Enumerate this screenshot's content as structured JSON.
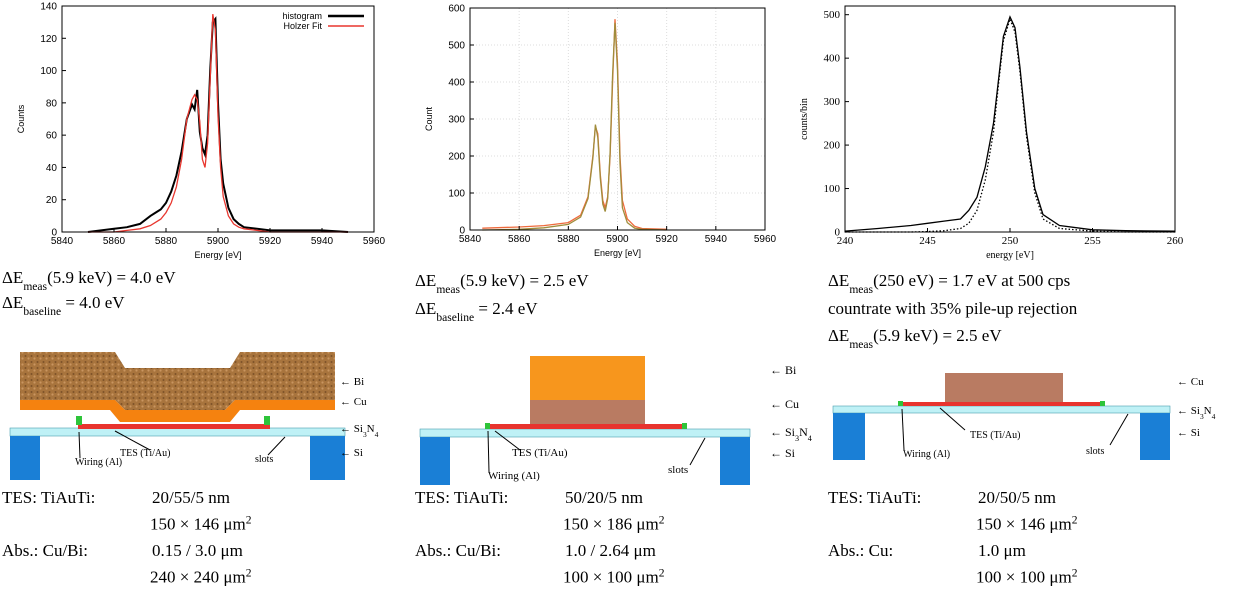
{
  "chart_data": [
    {
      "type": "line",
      "x_label": "Energy [eV]",
      "y_label": "Counts",
      "xlim": [
        5840,
        5960
      ],
      "xticks": [
        5840,
        5860,
        5880,
        5900,
        5920,
        5940,
        5960
      ],
      "ylim": [
        0,
        140
      ],
      "yticks": [
        0,
        20,
        40,
        60,
        80,
        100,
        120,
        140
      ],
      "grid": false,
      "legend": "upper right",
      "x": [
        5850,
        5855,
        5860,
        5865,
        5870,
        5874,
        5876,
        5878,
        5880,
        5882,
        5884,
        5886,
        5888,
        5890,
        5891,
        5892,
        5893,
        5894,
        5895,
        5896,
        5897,
        5898,
        5899,
        5900,
        5901,
        5902,
        5904,
        5906,
        5908,
        5910,
        5915,
        5920,
        5930,
        5940,
        5950
      ],
      "series": [
        {
          "name": "histogram",
          "color": "#000000",
          "values": [
            0,
            1,
            2,
            3,
            5,
            10,
            12,
            14,
            18,
            25,
            35,
            50,
            70,
            79,
            76,
            88,
            62,
            52,
            48,
            60,
            100,
            130,
            132,
            80,
            45,
            30,
            15,
            8,
            5,
            3,
            2,
            1,
            1,
            1,
            0
          ]
        },
        {
          "name": "Holzer Fit",
          "color": "#e8372f",
          "values": [
            0,
            0,
            0,
            1,
            2,
            4,
            6,
            8,
            12,
            18,
            28,
            45,
            70,
            82,
            85,
            82,
            68,
            45,
            40,
            55,
            95,
            135,
            125,
            72,
            40,
            22,
            10,
            5,
            3,
            2,
            1,
            0,
            0,
            0,
            0
          ]
        }
      ]
    },
    {
      "type": "line",
      "x_label": "Energy [eV]",
      "y_label": "Count",
      "xlim": [
        5840,
        5960
      ],
      "xticks": [
        5840,
        5860,
        5880,
        5900,
        5920,
        5940,
        5960
      ],
      "ylim": [
        0,
        600
      ],
      "yticks": [
        0,
        100,
        200,
        300,
        400,
        500,
        600
      ],
      "grid": true,
      "x": [
        5845,
        5860,
        5870,
        5880,
        5885,
        5888,
        5890,
        5891,
        5892,
        5893,
        5894,
        5895,
        5896,
        5897,
        5898,
        5899,
        5900,
        5901,
        5902,
        5904,
        5907,
        5910,
        5920
      ],
      "series": [
        {
          "color": "#ee6a3c",
          "values": [
            5,
            8,
            12,
            20,
            40,
            90,
            200,
            280,
            260,
            150,
            80,
            60,
            90,
            200,
            400,
            570,
            450,
            200,
            80,
            30,
            10,
            4,
            2
          ]
        },
        {
          "color": "#a08d3c",
          "values": [
            0,
            2,
            6,
            15,
            35,
            85,
            195,
            285,
            250,
            140,
            70,
            50,
            85,
            210,
            420,
            560,
            430,
            180,
            60,
            20,
            5,
            2,
            0
          ]
        }
      ]
    },
    {
      "type": "line",
      "x_label": "energy [eV]",
      "y_label": "counts/bin",
      "xlim": [
        240,
        260
      ],
      "xticks": [
        240,
        245,
        250,
        255,
        260
      ],
      "ylim": [
        0,
        520
      ],
      "yticks": [
        0,
        100,
        200,
        300,
        400,
        500
      ],
      "grid": false,
      "x": [
        240,
        242,
        244,
        245,
        246,
        247,
        247.5,
        248,
        248.5,
        249,
        249.3,
        249.6,
        250,
        250.3,
        250.6,
        251,
        251.5,
        252,
        253,
        255,
        257,
        260
      ],
      "series": [
        {
          "color": "#000000",
          "style": "solid",
          "values": [
            2,
            8,
            15,
            20,
            25,
            30,
            50,
            80,
            150,
            250,
            350,
            450,
            495,
            470,
            380,
            230,
            100,
            40,
            15,
            5,
            3,
            2
          ]
        },
        {
          "color": "#000000",
          "style": "dotted",
          "values": [
            0,
            0,
            0,
            1,
            3,
            8,
            20,
            50,
            120,
            230,
            340,
            440,
            490,
            460,
            370,
            220,
            90,
            30,
            8,
            2,
            0,
            0
          ]
        }
      ]
    }
  ],
  "panels": [
    {
      "caption": [
        [
          "ΔE",
          "meas",
          "(5.9 keV) = 4.0 eV"
        ],
        [
          "ΔE",
          "baseline",
          " = 4.0 eV"
        ]
      ],
      "diagram": {
        "layers": [
          "← Bi",
          "← Cu"
        ],
        "membrane": [
          "← Si",
          "3",
          "N",
          "4"
        ],
        "substrate": "← Si",
        "tes": "TES (Ti/Au)",
        "wiring": "Wiring (Al)",
        "slots": "slots"
      },
      "specs": [
        {
          "label": "TES: TiAuTi:",
          "lines": [
            [
              "20/55/5 nm"
            ],
            [
              "150 × 146 μm",
              "2"
            ]
          ]
        },
        {
          "label": "Abs.: Cu/Bi:",
          "lines": [
            [
              "0.15 / 3.0 μm"
            ],
            [
              "240 × 240 μm",
              "2"
            ]
          ]
        }
      ]
    },
    {
      "caption": [
        [
          "ΔE",
          "meas",
          "(5.9 keV) = 2.5 eV"
        ],
        [
          "ΔE",
          "baseline",
          " = 2.4 eV"
        ]
      ],
      "diagram": {
        "layers": [
          "← Bi",
          "← Cu"
        ],
        "membrane": [
          "← Si",
          "3",
          "N",
          "4"
        ],
        "substrate": "← Si",
        "tes": "TES (Ti/Au)",
        "wiring": "Wiring (Al)",
        "slots": "slots"
      },
      "specs": [
        {
          "label": "TES: TiAuTi:",
          "lines": [
            [
              "50/20/5 nm"
            ],
            [
              "150 × 186 μm",
              "2"
            ]
          ]
        },
        {
          "label": "Abs.: Cu/Bi:",
          "lines": [
            [
              "1.0 / 2.64 μm"
            ],
            [
              "100 × 100 μm",
              "2"
            ]
          ]
        }
      ]
    },
    {
      "caption": [
        [
          "ΔE",
          "meas",
          "(250 eV) = 1.7 eV at 500 cps"
        ],
        [
          "countrate with 35% pile-up rejection"
        ],
        [
          "ΔE",
          "meas",
          "(5.9 keV) = 2.5 eV"
        ]
      ],
      "diagram": {
        "layers": [
          "← Cu"
        ],
        "membrane": [
          "← Si",
          "3",
          "N",
          "4"
        ],
        "substrate": "← Si",
        "tes": "TES (Ti/Au)",
        "wiring": "Wiring (Al)",
        "slots": "slots"
      },
      "specs": [
        {
          "label": "TES: TiAuTi:",
          "lines": [
            [
              "20/50/5 nm"
            ],
            [
              "150 × 146 μm",
              "2"
            ]
          ]
        },
        {
          "label": "Abs.: Cu:",
          "lines": [
            [
              "1.0  μm"
            ],
            [
              "100 × 100 μm",
              "2"
            ]
          ]
        }
      ]
    }
  ]
}
